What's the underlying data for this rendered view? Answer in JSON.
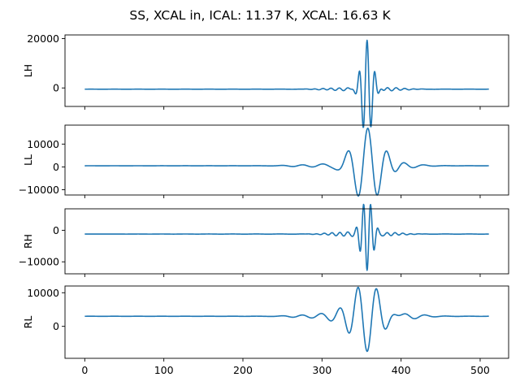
{
  "chart_data": {
    "type": "line",
    "title": "SS, XCAL in, ICAL: 11.37 K, XCAL: 16.63 K",
    "layout": "4 vertically stacked subplots sharing x-axis",
    "line_color": "#1f77b4",
    "x_range": [
      0,
      511
    ],
    "xlim": [
      -25,
      536
    ],
    "x_ticks": [
      0,
      100,
      200,
      300,
      400,
      500
    ],
    "x_tick_labels": [
      "0",
      "100",
      "200",
      "300",
      "400",
      "500"
    ],
    "grid": false,
    "legend": "none",
    "subplots": [
      {
        "ylabel": "LH",
        "ylim": [
          -7500,
          21500
        ],
        "y_ticks": [
          0,
          20000
        ],
        "y_tick_labels": [
          "0",
          "20000"
        ],
        "baseline": -500,
        "signal": {
          "center": 357,
          "amplitude": 20000,
          "period": 10,
          "decay": 7
        },
        "ripples": [
          [
            330,
            20,
            600
          ],
          [
            380,
            20,
            700
          ],
          [
            300,
            12,
            200
          ]
        ]
      },
      {
        "ylabel": "LL",
        "ylim": [
          -12300,
          18300
        ],
        "y_ticks": [
          -10000,
          0,
          10000
        ],
        "y_tick_labels": [
          "−10000",
          "0",
          "10000"
        ],
        "baseline": 500,
        "signal": {
          "center": 358,
          "amplitude": 16500,
          "period": 25,
          "decay": 18
        },
        "ripples": [
          [
            320,
            22,
            1200
          ],
          [
            395,
            22,
            1200
          ],
          [
            270,
            16,
            300
          ]
        ]
      },
      {
        "ylabel": "RH",
        "ylim": [
          -13800,
          6800
        ],
        "y_ticks": [
          -10000,
          0
        ],
        "y_tick_labels": [
          "−10000",
          "0"
        ],
        "baseline": -1200,
        "signal": {
          "center": 357,
          "amplitude": -11000,
          "period": 9,
          "decay": 7
        },
        "ripples": [
          [
            330,
            20,
            600
          ],
          [
            380,
            20,
            500
          ]
        ]
      },
      {
        "ylabel": "RL",
        "ylim": [
          -9500,
          12000
        ],
        "y_ticks": [
          0,
          10000
        ],
        "y_tick_labels": [
          "0",
          "10000"
        ],
        "baseline": 3000,
        "signal": {
          "center": 357,
          "amplitude": -10500,
          "period": 24,
          "decay": 18
        },
        "ripples": [
          [
            318,
            22,
            1100
          ],
          [
            398,
            22,
            1100
          ],
          [
            270,
            16,
            250
          ]
        ]
      }
    ]
  }
}
